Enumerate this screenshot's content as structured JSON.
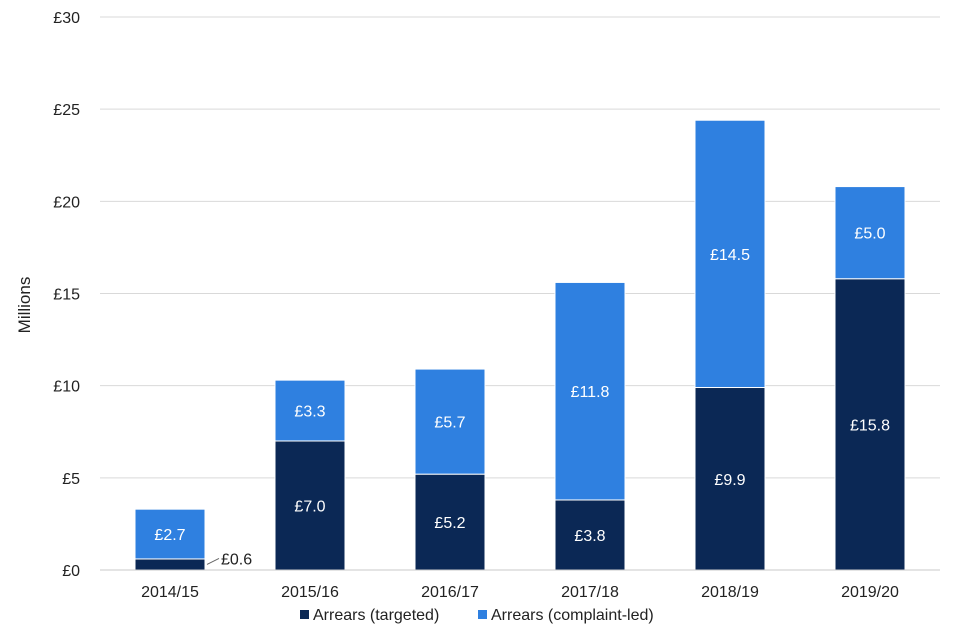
{
  "chart_data": {
    "type": "bar",
    "stacked": true,
    "title": "",
    "xlabel": "",
    "ylabel": "Millions",
    "ylim": [
      0,
      30
    ],
    "yticks": [
      0,
      5,
      10,
      15,
      20,
      25,
      30
    ],
    "ytick_labels": [
      "£0",
      "£5",
      "£10",
      "£15",
      "£20",
      "£25",
      "£30"
    ],
    "grid": "horizontal",
    "legend_position": "bottom",
    "categories": [
      "2014/15",
      "2015/16",
      "2016/17",
      "2017/18",
      "2018/19",
      "2019/20"
    ],
    "series": [
      {
        "name": "Arrears (targeted)",
        "color": "#0b2855",
        "values": [
          0.6,
          7.0,
          5.2,
          3.8,
          9.9,
          15.8
        ],
        "labels": [
          "£0.6",
          "£7.0",
          "£5.2",
          "£3.8",
          "£9.9",
          "£15.8"
        ]
      },
      {
        "name": "Arrears (complaint-led)",
        "color": "#2f80e0",
        "values": [
          2.7,
          3.3,
          5.7,
          11.8,
          14.5,
          5.0
        ],
        "labels": [
          "£2.7",
          "£3.3",
          "£5.7",
          "£11.8",
          "£14.5",
          "£5.0"
        ]
      }
    ]
  }
}
